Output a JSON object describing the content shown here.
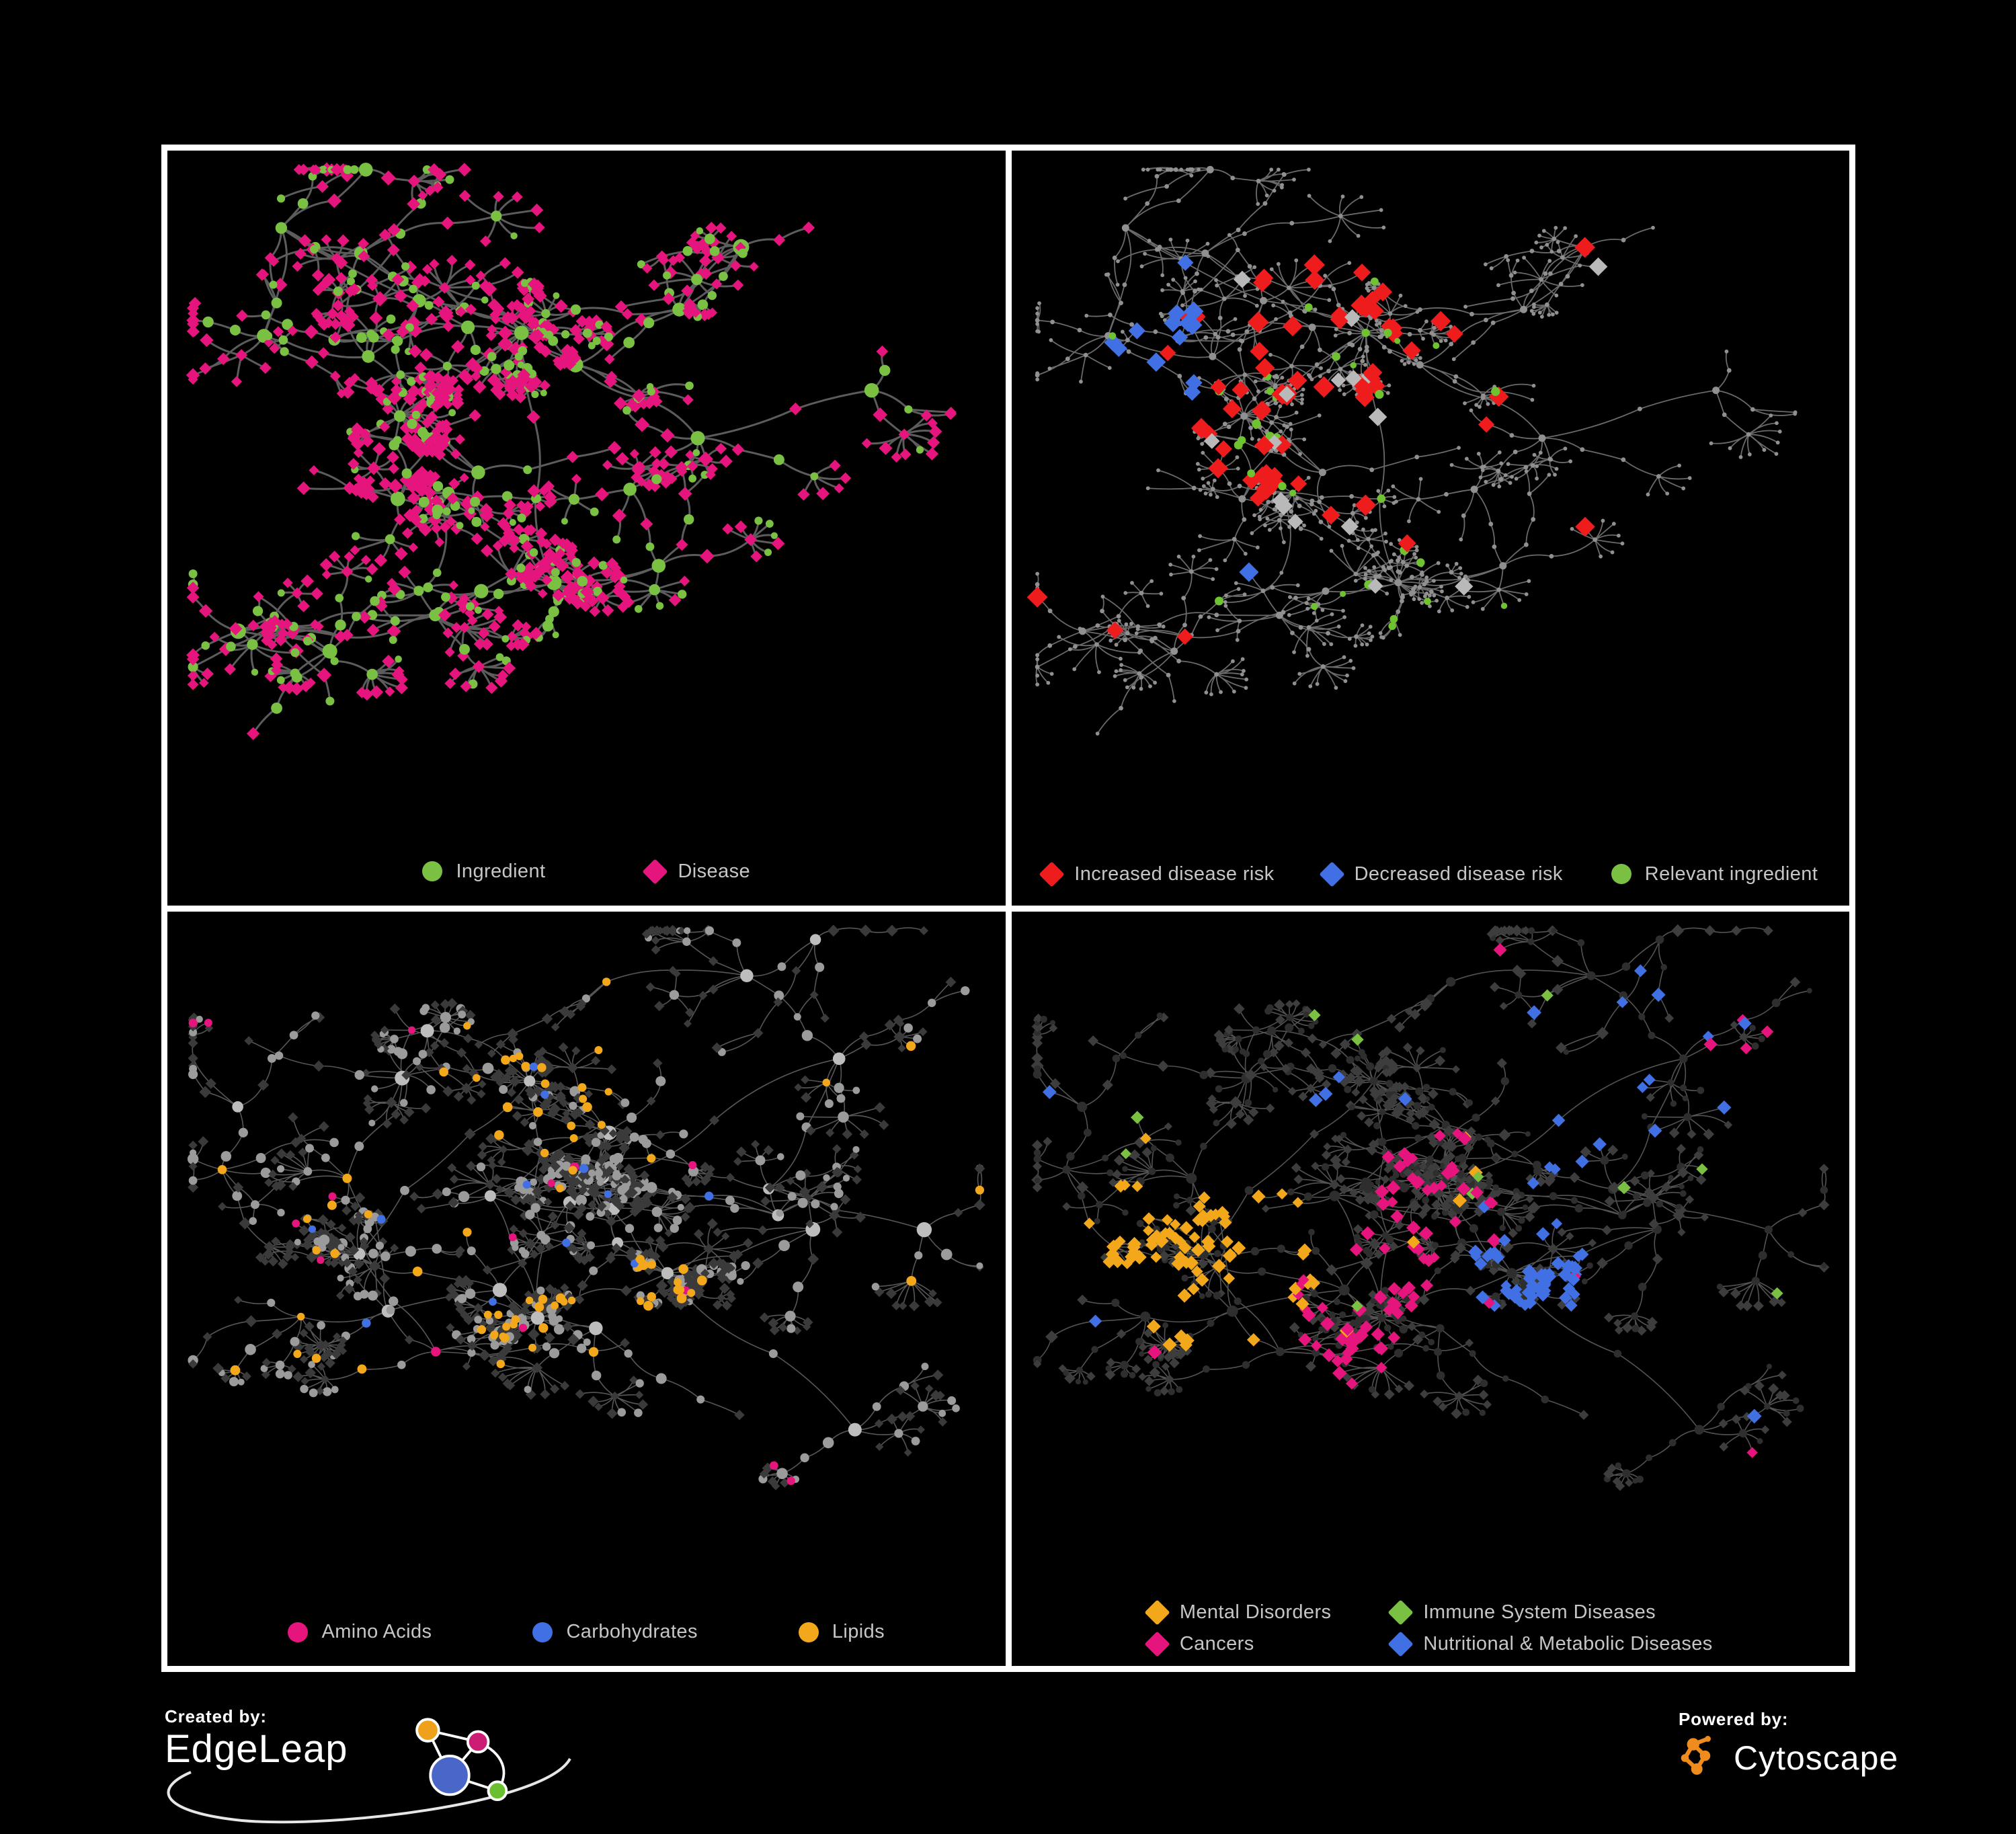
{
  "figure": {
    "background": "#000000",
    "border_color": "#ffffff",
    "panel_background": "#000000",
    "legend_text_color": "#c6c6c6"
  },
  "panels": [
    {
      "id": "ingredient-disease",
      "legend": [
        {
          "label": "Ingredient",
          "shape": "circle",
          "color": "#7ac143"
        },
        {
          "label": "Disease",
          "shape": "diamond",
          "color": "#e6147d"
        }
      ]
    },
    {
      "id": "disease-risk",
      "legend": [
        {
          "label": "Increased disease risk",
          "shape": "diamond",
          "color": "#ee1c1c"
        },
        {
          "label": "Decreased disease risk",
          "shape": "diamond",
          "color": "#4170e4"
        },
        {
          "label": "Relevant ingredient",
          "shape": "circle",
          "color": "#7ac143"
        }
      ]
    },
    {
      "id": "macronutrients",
      "legend": [
        {
          "label": "Amino Acids",
          "shape": "circle",
          "color": "#e6147d"
        },
        {
          "label": "Carbohydrates",
          "shape": "circle",
          "color": "#4170e4"
        },
        {
          "label": "Lipids",
          "shape": "circle",
          "color": "#f3a71b"
        }
      ]
    },
    {
      "id": "disease-categories",
      "legend": [
        {
          "label": "Mental Disorders",
          "shape": "diamond",
          "color": "#f3a71b"
        },
        {
          "label": "Immune System Diseases",
          "shape": "diamond",
          "color": "#7ac143"
        },
        {
          "label": "Cancers",
          "shape": "diamond",
          "color": "#e6147d"
        },
        {
          "label": "Nutritional & Metabolic Diseases",
          "shape": "diamond",
          "color": "#4170e4"
        }
      ]
    }
  ],
  "footer": {
    "created_by_label": "Created by:",
    "created_by_name": "EdgeLeap",
    "powered_by_label": "Powered by:",
    "powered_by_name": "Cytoscape",
    "cytoscape_logo_color": "#f08c1d",
    "edgeleap_logo_colors": {
      "blue": "#4a66c9",
      "orange": "#f0a11c",
      "magenta": "#cc1d74",
      "green": "#6abf2e",
      "stroke": "#ffffff"
    }
  },
  "render_params": {
    "nets": [
      {
        "seed": 1337,
        "hubs": 26,
        "cores": [
          [
            0.27,
            0.4
          ],
          [
            0.42,
            0.27
          ],
          [
            0.46,
            0.66
          ],
          [
            0.33,
            0.52
          ]
        ],
        "coreBranches": 12,
        "bMin": 3,
        "bMax": 5,
        "chain": 3,
        "step": 0.045,
        "fanProb": 0.5,
        "fMin": 4,
        "fMax": 10,
        "cross": 34,
        "midCircle": 0.45,
        "leafCircle": 0.16
      },
      {
        "seed": 777,
        "hubs": 30,
        "cores": [
          [
            0.22,
            0.52
          ],
          [
            0.43,
            0.25
          ],
          [
            0.44,
            0.62
          ],
          [
            0.6,
            0.55
          ],
          [
            0.52,
            0.4
          ]
        ],
        "coreBranches": 13,
        "bMin": 3,
        "bMax": 5,
        "chain": 3,
        "step": 0.045,
        "fanProb": 0.5,
        "fMin": 4,
        "fMax": 11,
        "cross": 40,
        "midCircle": 0.5,
        "leafCircle": 0.3
      }
    ],
    "panel_styles": [
      {
        "net": 0,
        "edge": {
          "color": "#616161",
          "width": 3.0,
          "opacity": 0.95
        },
        "circle": {
          "color": "#7ac143",
          "hub": 13,
          "mid": 9,
          "leaf": 7.5
        },
        "diamond": {
          "color": "#e6147d",
          "mid": 9.5,
          "leaf": 8.5
        },
        "highlights": []
      },
      {
        "net": 0,
        "uniform": {
          "color": "#909090",
          "hub": 5.5,
          "mid": 3.4,
          "leaf": 2.9
        },
        "edge": {
          "color": "#7d7d7d",
          "width": 1.8,
          "opacity": 0.85
        },
        "highlights": [
          {
            "on": "i",
            "shape": "circle",
            "color": "#6fc230",
            "size": [
              7,
              11
            ],
            "base": 0.04,
            "hotspots": [
              [
                0.27,
                0.4,
                0.16,
                0.3
              ],
              [
                0.42,
                0.27,
                0.12,
                0.2
              ],
              [
                0.46,
                0.66,
                0.1,
                0.25
              ]
            ]
          },
          {
            "on": "d",
            "shape": "diamond",
            "color": "#ee1c1c",
            "size": [
              12,
              16
            ],
            "base": 0.012,
            "hotspots": [
              [
                0.36,
                0.36,
                0.2,
                0.2
              ],
              [
                0.5,
                0.45,
                0.14,
                0.18
              ],
              [
                0.62,
                0.6,
                0.12,
                0.1
              ],
              [
                0.72,
                0.74,
                0.09,
                0.18
              ]
            ]
          },
          {
            "on": "d",
            "shape": "diamond",
            "color": "#4170e4",
            "size": [
              12,
              15
            ],
            "base": 0.003,
            "hotspots": [
              [
                0.16,
                0.3,
                0.08,
                0.5
              ],
              [
                0.87,
                0.16,
                0.05,
                0.6
              ]
            ]
          },
          {
            "on": "d",
            "shape": "diamond",
            "color": "#b9b9b9",
            "size": [
              11,
              14
            ],
            "base": 0.006,
            "hotspots": [
              [
                0.4,
                0.4,
                0.2,
                0.05
              ]
            ]
          }
        ]
      },
      {
        "net": 1,
        "edge": {
          "color": "#9e9e9e",
          "width": 1.6,
          "opacity": 0.55
        },
        "circle": {
          "color": "#9b9b9b",
          "hubColor": "#bdbdbd",
          "hub": 12,
          "mid": 9,
          "leaf": 7.5
        },
        "diamond": {
          "color": "#3a3a3a",
          "mid": 7.5,
          "leaf": 7
        },
        "highlights": [
          {
            "on": "i",
            "shape": "circle",
            "color": "#f3a71b",
            "size": [
              9,
              12
            ],
            "base": 0.05,
            "hotspots": [
              [
                0.43,
                0.25,
                0.12,
                0.5
              ],
              [
                0.44,
                0.62,
                0.09,
                0.35
              ],
              [
                0.22,
                0.52,
                0.14,
                0.12
              ],
              [
                0.58,
                0.57,
                0.07,
                0.4
              ]
            ]
          },
          {
            "on": "i",
            "shape": "circle",
            "color": "#e6147d",
            "size": [
              9,
              12
            ],
            "base": 0.03,
            "hotspots": [
              [
                0.3,
                0.75,
                0.1,
                0.15
              ],
              [
                0.85,
                0.12,
                0.06,
                0.3
              ]
            ]
          },
          {
            "on": "i",
            "shape": "circle",
            "color": "#4170e4",
            "size": [
              9,
              11
            ],
            "base": 0.018,
            "hotspots": [
              [
                0.43,
                0.21,
                0.08,
                0.2
              ]
            ]
          }
        ]
      },
      {
        "net": 1,
        "edge": {
          "color": "#8a8a8a",
          "width": 1.6,
          "opacity": 0.6
        },
        "circle": {
          "color": "#2e2e2e",
          "hub": 9,
          "mid": 7,
          "leaf": 6
        },
        "diamond": {
          "color": "#3d3d3d",
          "mid": 8,
          "leaf": 7
        },
        "highlights": [
          {
            "on": "d",
            "shape": "diamond",
            "color": "#f3a71b",
            "size": [
              8,
              11
            ],
            "base": 0.02,
            "hotspots": [
              [
                0.22,
                0.52,
                0.15,
                0.85
              ],
              [
                0.12,
                0.32,
                0.07,
                0.3
              ]
            ]
          },
          {
            "on": "d",
            "shape": "diamond",
            "color": "#e6147d",
            "size": [
              8,
              11
            ],
            "base": 0.02,
            "hotspots": [
              [
                0.44,
                0.6,
                0.11,
                0.55
              ],
              [
                0.52,
                0.42,
                0.09,
                0.3
              ],
              [
                0.34,
                0.72,
                0.09,
                0.25
              ],
              [
                0.88,
                0.16,
                0.06,
                0.5
              ]
            ]
          },
          {
            "on": "d",
            "shape": "diamond",
            "color": "#4170e4",
            "size": [
              8,
              11
            ],
            "base": 0.03,
            "hotspots": [
              [
                0.6,
                0.55,
                0.1,
                0.7
              ],
              [
                0.8,
                0.2,
                0.13,
                0.3
              ],
              [
                0.68,
                0.35,
                0.09,
                0.3
              ]
            ]
          },
          {
            "on": "d",
            "shape": "diamond",
            "color": "#7ac143",
            "size": [
              8,
              10
            ],
            "base": 0.012,
            "hotspots": []
          }
        ]
      }
    ]
  }
}
